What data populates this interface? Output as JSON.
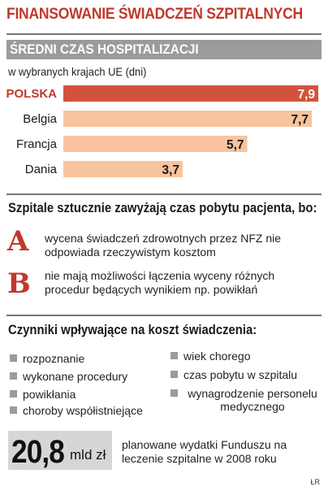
{
  "header": {
    "title": "FINANSOWANIE ŚWIADCZEŃ SZPITALNYCH",
    "band_label": "ŚREDNI CZAS HOSPITALIZACJI",
    "subtitle": "w wybranych krajach UE (dni)"
  },
  "chart_data": {
    "type": "bar",
    "orientation": "horizontal",
    "title": "ŚREDNI CZAS HOSPITALIZACJI",
    "subtitle": "w wybranych krajach UE (dni)",
    "categories": [
      "POLSKA",
      "Belgia",
      "Francja",
      "Dania"
    ],
    "values": [
      7.9,
      7.7,
      5.7,
      3.7
    ],
    "value_labels": [
      "7,9",
      "7,7",
      "5,7",
      "3,7"
    ],
    "highlight": "POLSKA",
    "xlim": [
      0,
      7.9
    ],
    "grid": false,
    "legend": "none",
    "colors": {
      "highlight": "#d2533b",
      "default": "#f8c49e",
      "highlight_label": "#c0392b"
    }
  },
  "reasons": {
    "heading": "Szpitale sztucznie zawyżają czas pobytu pacjenta, bo:",
    "items": [
      {
        "letter": "A",
        "text": "wycena świadczeń zdrowotnych przez NFZ nie odpowiada rzeczywistym kosztom"
      },
      {
        "letter": "B",
        "text": "nie mają możliwości łączenia wyceny różnych procedur będących wynikiem np. powikłań"
      }
    ]
  },
  "factors": {
    "heading": "Czynniki wpływające na koszt świadczenia:",
    "left": [
      "rozpoznanie",
      "wykonane procedury",
      "powikłania",
      "choroby współistniejące"
    ],
    "right": [
      "wiek chorego",
      "czas pobytu w szpitalu",
      "wynagrodzenie personelu medycznego"
    ]
  },
  "budget": {
    "amount": "20,8",
    "unit": "mld zł",
    "description": "planowane wydatki Funduszu na leczenie szpitalne w 2008 roku"
  },
  "credit": "ŁR",
  "colors": {
    "accent": "#c0392b",
    "gray": "#9b9b9b",
    "box": "#d6d6d6"
  }
}
